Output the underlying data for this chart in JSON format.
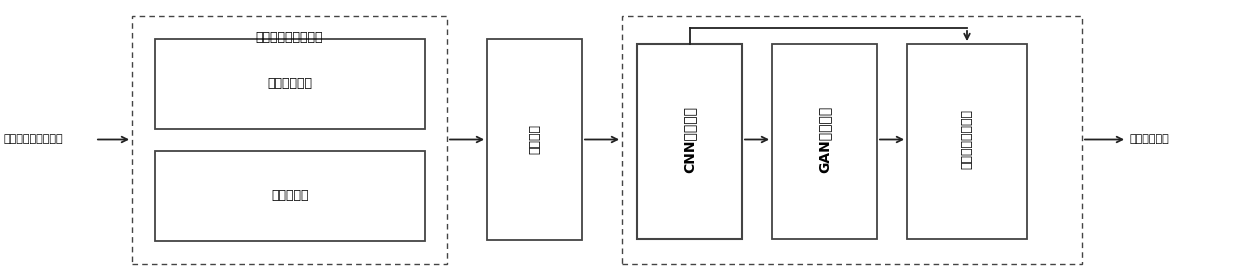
{
  "fig_width": 12.4,
  "fig_height": 2.79,
  "dpi": 100,
  "bg_color": "#ffffff",
  "text_input": "待识别的心血管影像",
  "text_output": "全心七维模型",
  "text_subsystem": "影像数据处理子系统",
  "text_cnn": "CNN神经网络",
  "text_gan": "GAN神经网络",
  "text_synth": "七维模型合成单元",
  "text_cloud": "云数据库",
  "text_conv": "卷积神经网络",
  "text_svm": "支持向量机",
  "box_edge_color": "#444444",
  "dashed_edge_color": "#444444",
  "arrow_color": "#222222",
  "lw_solid": 1.3,
  "lw_dashed": 1.0,
  "lw_arrow": 1.3
}
